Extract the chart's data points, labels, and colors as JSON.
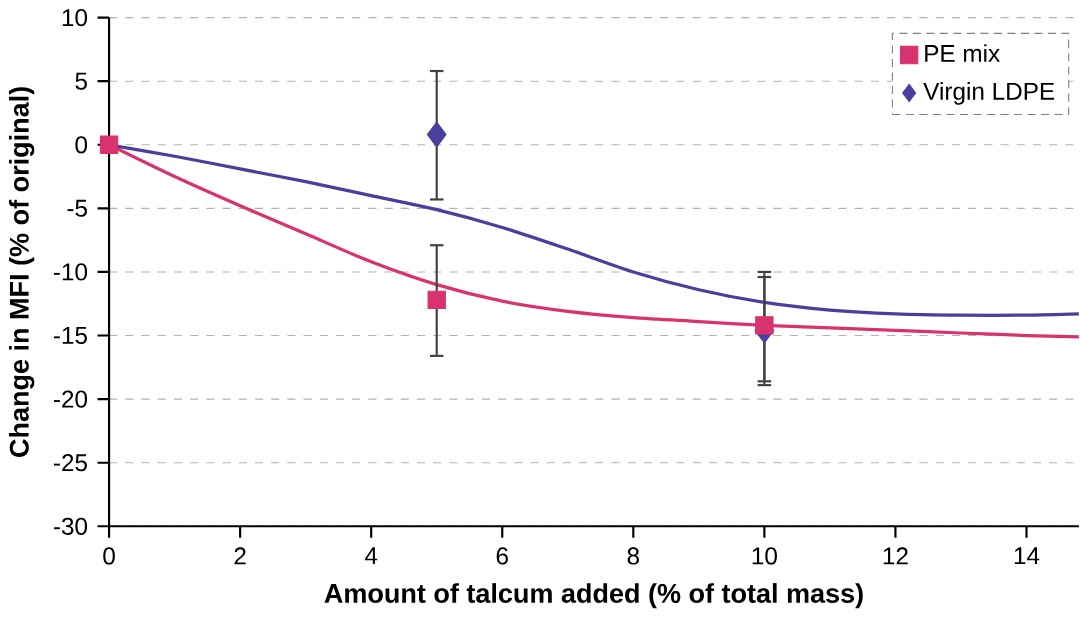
{
  "chart_data": {
    "type": "scatter",
    "xlabel": "Amount of talcum added (% of total mass)",
    "ylabel": "Change in MFI (% of original)",
    "xlim": [
      0,
      14.8
    ],
    "ylim": [
      -30,
      10
    ],
    "xticks": [
      0,
      2,
      4,
      6,
      8,
      10,
      12,
      14
    ],
    "yticks": [
      -30,
      -25,
      -20,
      -15,
      -10,
      -5,
      0,
      5,
      10
    ],
    "grid": "y",
    "legend": "top right",
    "series": [
      {
        "type": "line",
        "color": "#d8336e",
        "marker": "none",
        "x": [
          0,
          1,
          2,
          3,
          4,
          5,
          6,
          7,
          8,
          9,
          10,
          11,
          12,
          13,
          14,
          14.8
        ],
        "values": [
          0,
          -2.5,
          -4.8,
          -7,
          -9.2,
          -11,
          -12.3,
          -13.1,
          -13.6,
          -13.9,
          -14.2,
          -14.4,
          -14.6,
          -14.8,
          -15,
          -15.1
        ]
      },
      {
        "type": "line",
        "color": "#4b3f9e",
        "marker": "none",
        "x": [
          0,
          1,
          2,
          3,
          4,
          5,
          6,
          7,
          8,
          9,
          10,
          11,
          12,
          13,
          14,
          14.8
        ],
        "values": [
          0,
          -0.9,
          -1.9,
          -2.9,
          -4,
          -5.1,
          -6.5,
          -8.2,
          -10,
          -11.4,
          -12.4,
          -13,
          -13.3,
          -13.4,
          -13.4,
          -13.3
        ]
      },
      {
        "type": "scatter",
        "name": "PE mix",
        "color": "#d8336e",
        "marker": "square",
        "x": [
          0,
          5,
          10
        ],
        "values": [
          0,
          -12.2,
          -14.2
        ],
        "errors": [
          null,
          [
            -16.6,
            -7.9
          ],
          [
            -18.6,
            -10.4
          ]
        ]
      },
      {
        "type": "scatter",
        "name": "Virgin LDPE",
        "color": "#4b3f9e",
        "marker": "diamond",
        "x": [
          5,
          10
        ],
        "values": [
          0.8,
          -14.6
        ],
        "errors": [
          [
            -4.3,
            5.8
          ],
          [
            -18.9,
            -10.0
          ]
        ]
      }
    ]
  }
}
